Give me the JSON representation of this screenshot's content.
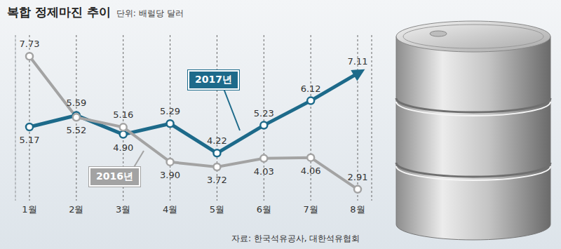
{
  "chart_data": {
    "type": "line",
    "title": "복합 정제마진 추이",
    "subtitle": "단위: 배럴당 달러",
    "source": "자료: 한국석유공사, 대한석유협회",
    "categories": [
      "1월",
      "2월",
      "3월",
      "4월",
      "5월",
      "6월",
      "7월",
      "8월"
    ],
    "series": [
      {
        "name": "2017년",
        "color": "#1d6a8a",
        "marker": "circle",
        "values": [
          5.17,
          5.59,
          4.9,
          5.29,
          4.22,
          5.23,
          6.12,
          7.11
        ],
        "value_labels": [
          "5.17",
          "5.59",
          "4.90",
          "5.29",
          "4.22",
          "5.23",
          "6.12",
          "7.11"
        ]
      },
      {
        "name": "2016년",
        "color": "#a3a3a3",
        "marker": "circle",
        "values": [
          7.73,
          5.52,
          5.16,
          3.9,
          3.72,
          4.03,
          4.06,
          2.91
        ],
        "value_labels": [
          "7.73",
          "5.52",
          "5.16",
          "3.90",
          "3.72",
          "4.03",
          "4.06",
          "2.91"
        ]
      }
    ],
    "ylim": [
      2.5,
      8.5
    ],
    "yticks": [],
    "grid": true,
    "tick_labels": "x",
    "data_labels": true
  }
}
